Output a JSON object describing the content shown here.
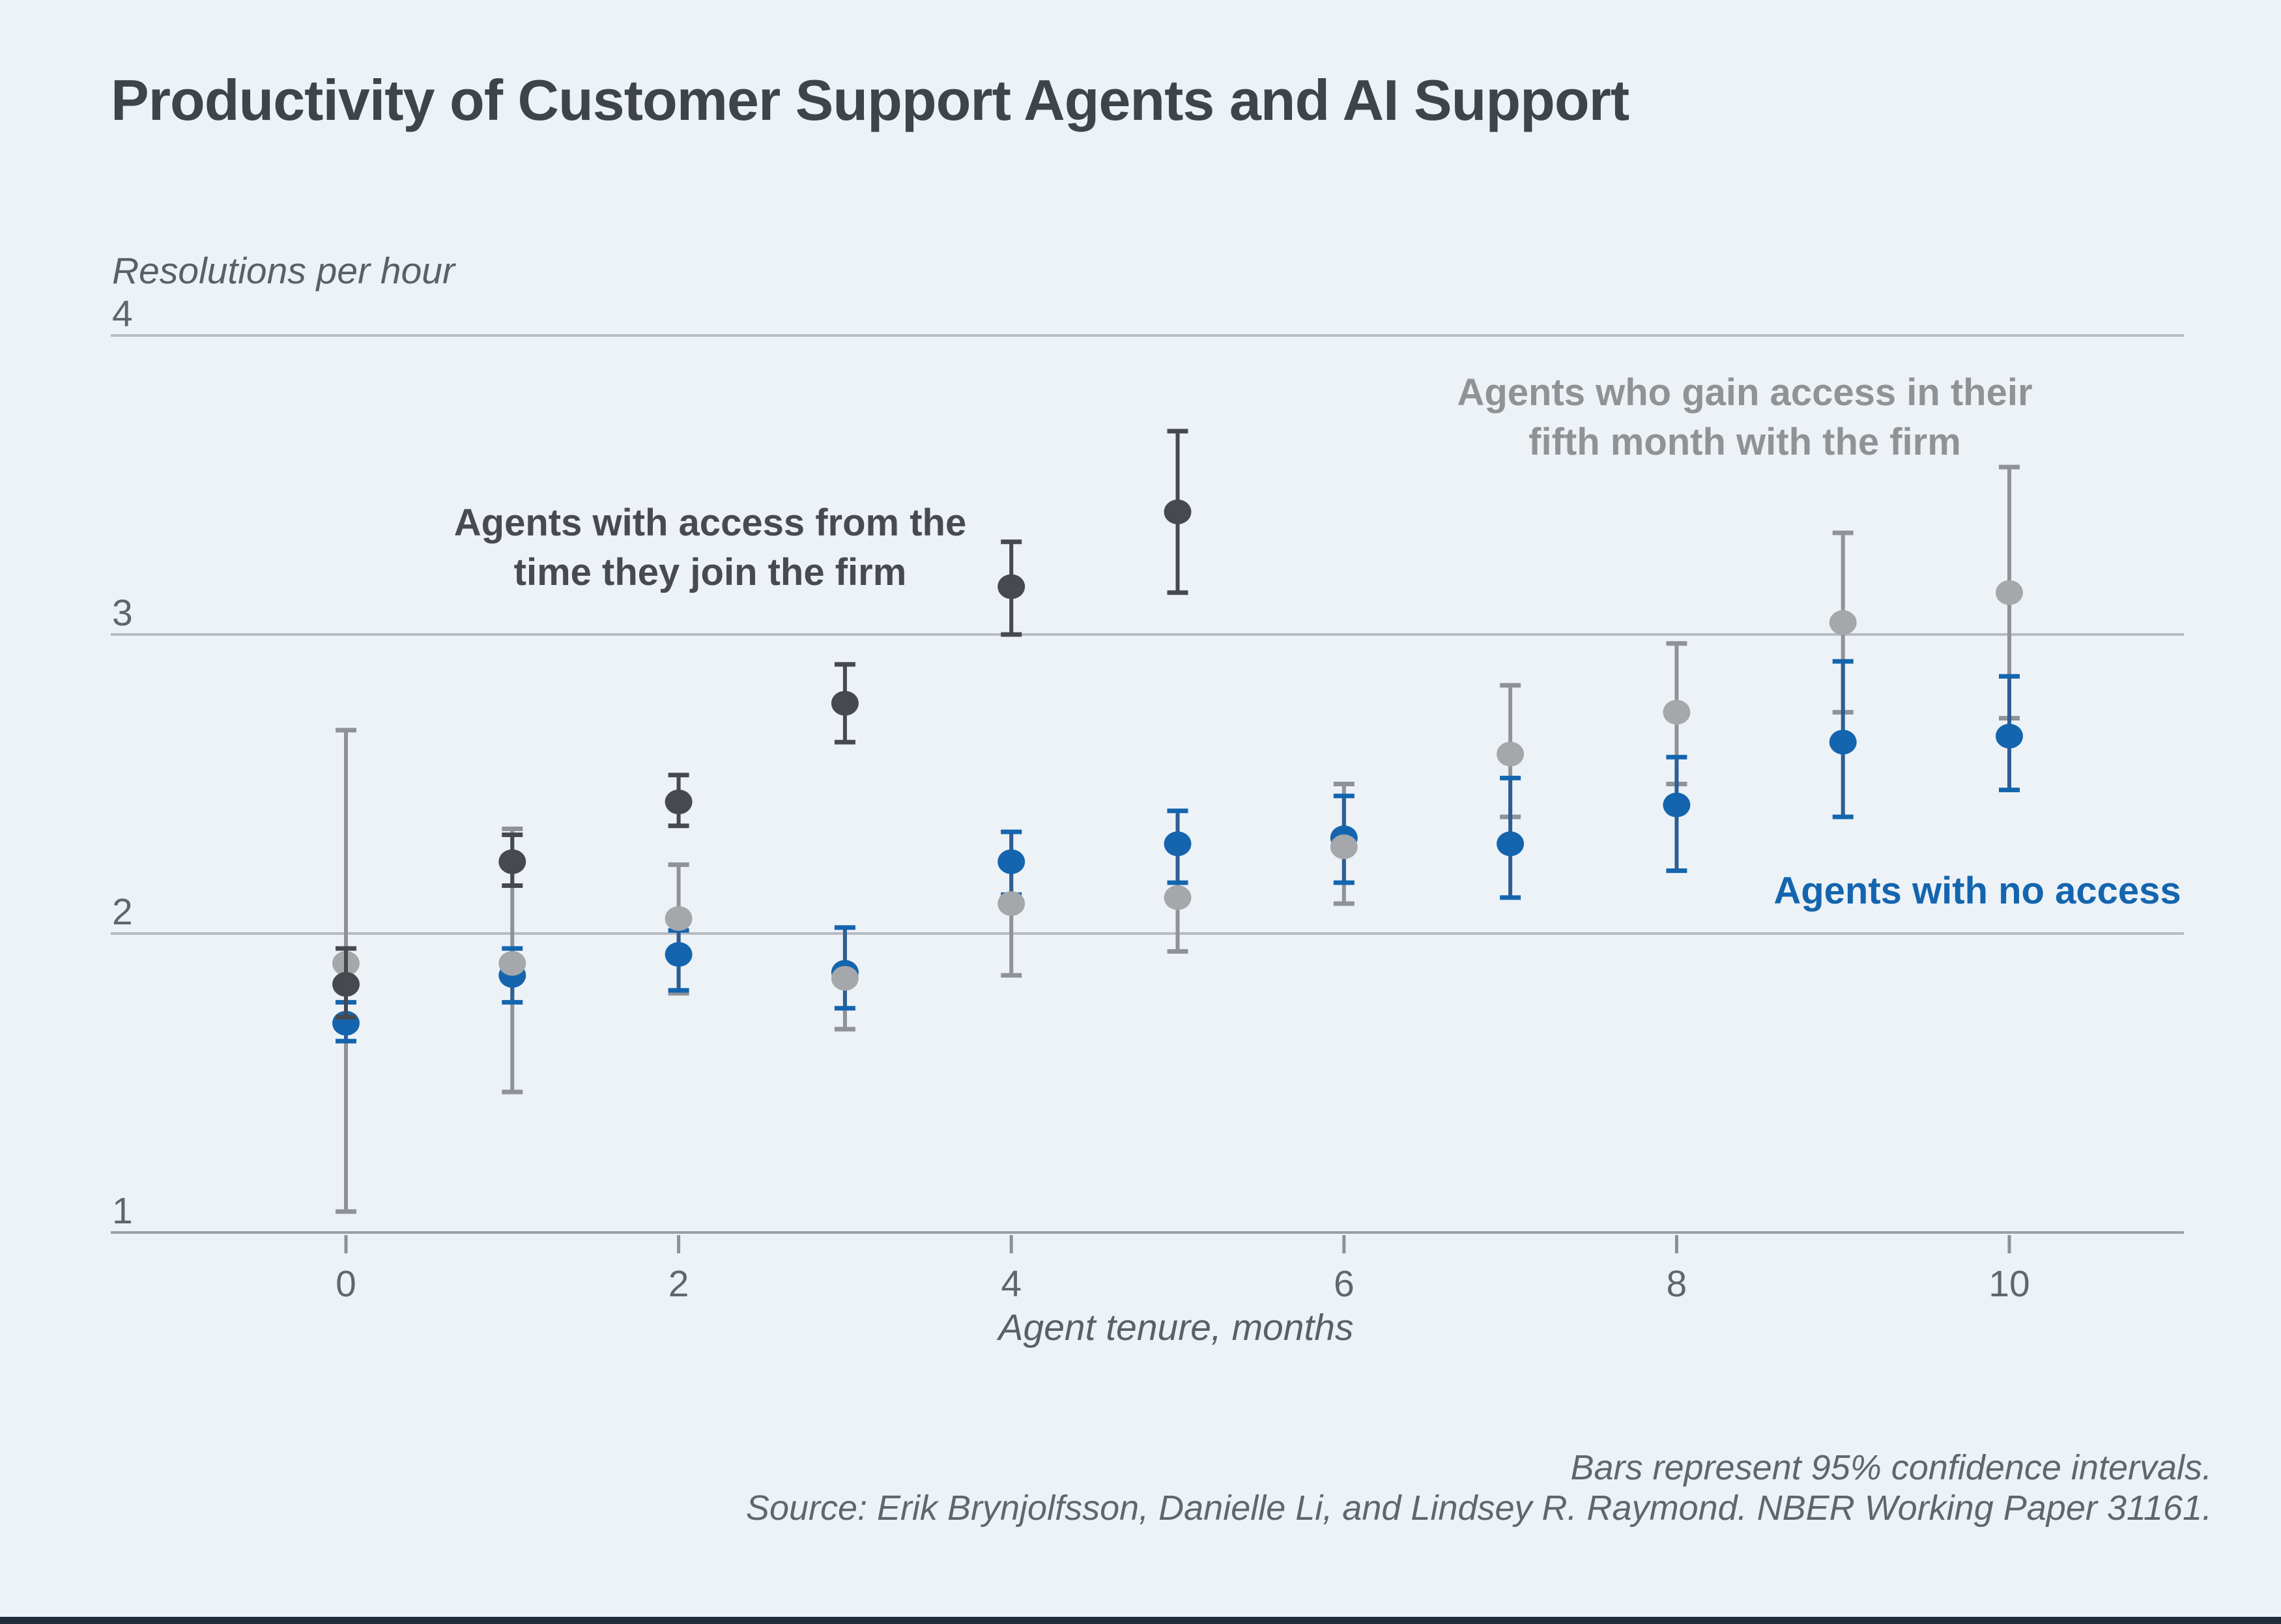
{
  "page": {
    "title": "Productivity of Customer Support Agents and AI Support",
    "background_color": "#edf2f7",
    "accent_bar_color": "#1f2b3a"
  },
  "annotations": {
    "dark": {
      "line1": "Agents with access from the",
      "line2": "time they join the firm"
    },
    "gray": {
      "line1": "Agents who gain access in their",
      "line2": "fifth month with the firm"
    },
    "blue": {
      "label": "Agents with no access"
    }
  },
  "footer": {
    "note": "Bars represent 95% confidence intervals.",
    "source": "Source: Erik Brynjolfsson, Danielle Li, and Lindsey R. Raymond. NBER Working Paper 31161."
  },
  "chart_data": {
    "type": "scatter",
    "title": "Productivity of Customer Support Agents and AI Support",
    "ylabel": "Resolutions per hour",
    "xlabel": "Agent tenure, months",
    "ylim": [
      1,
      4
    ],
    "y_ticks": [
      1,
      2,
      3,
      4
    ],
    "x_ticks": [
      0,
      2,
      4,
      6,
      8,
      10
    ],
    "grid": "horizontal gridlines at y = 2, 3, 4; baseline at y = 1",
    "legend_position": "inline text annotations",
    "error_bars": "95% confidence intervals",
    "colors": {
      "gridline": "#b7bcc2",
      "axis_line": "#9aa0a6",
      "tick_text": "#61666b"
    },
    "series": [
      {
        "name": "Agents with access from the time they join the firm",
        "dot_color": "#46494e",
        "ci_color": "#46494e",
        "cap_color": "#46494e",
        "x": [
          0,
          1,
          2,
          3,
          4,
          5
        ],
        "values": [
          1.83,
          2.24,
          2.44,
          2.77,
          3.16,
          3.41
        ],
        "ci_low": [
          1.72,
          2.16,
          2.36,
          2.64,
          3.0,
          3.14
        ],
        "ci_high": [
          1.95,
          2.33,
          2.53,
          2.9,
          3.31,
          3.68
        ]
      },
      {
        "name": "Agents who gain access in their fifth month with the firm",
        "dot_color": "#a5a7aa",
        "ci_color": "#8f9397",
        "cap_color": "#8f9397",
        "x": [
          0,
          1,
          2,
          3,
          4,
          5,
          6,
          7,
          8,
          9,
          10
        ],
        "values": [
          1.9,
          1.9,
          2.05,
          1.85,
          2.1,
          2.12,
          2.29,
          2.6,
          2.74,
          3.04,
          3.14
        ],
        "ci_low": [
          1.07,
          1.47,
          1.8,
          1.68,
          1.86,
          1.94,
          2.1,
          2.39,
          2.5,
          2.74,
          2.72
        ],
        "ci_high": [
          2.68,
          2.35,
          2.23,
          2.02,
          2.34,
          2.3,
          2.5,
          2.83,
          2.97,
          3.34,
          3.56
        ]
      },
      {
        "name": "Agents with no access",
        "dot_color": "#1465ae",
        "ci_color": "#2e5e92",
        "cap_color": "#1465ae",
        "x": [
          0,
          1,
          2,
          3,
          4,
          5,
          6,
          7,
          8,
          9,
          10
        ],
        "values": [
          1.7,
          1.86,
          1.93,
          1.87,
          2.24,
          2.3,
          2.32,
          2.3,
          2.43,
          2.64,
          2.66
        ],
        "ci_low": [
          1.64,
          1.77,
          1.81,
          1.75,
          2.13,
          2.17,
          2.17,
          2.12,
          2.21,
          2.39,
          2.48
        ],
        "ci_high": [
          1.77,
          1.95,
          2.01,
          2.02,
          2.34,
          2.41,
          2.46,
          2.52,
          2.59,
          2.91,
          2.86
        ]
      }
    ]
  }
}
